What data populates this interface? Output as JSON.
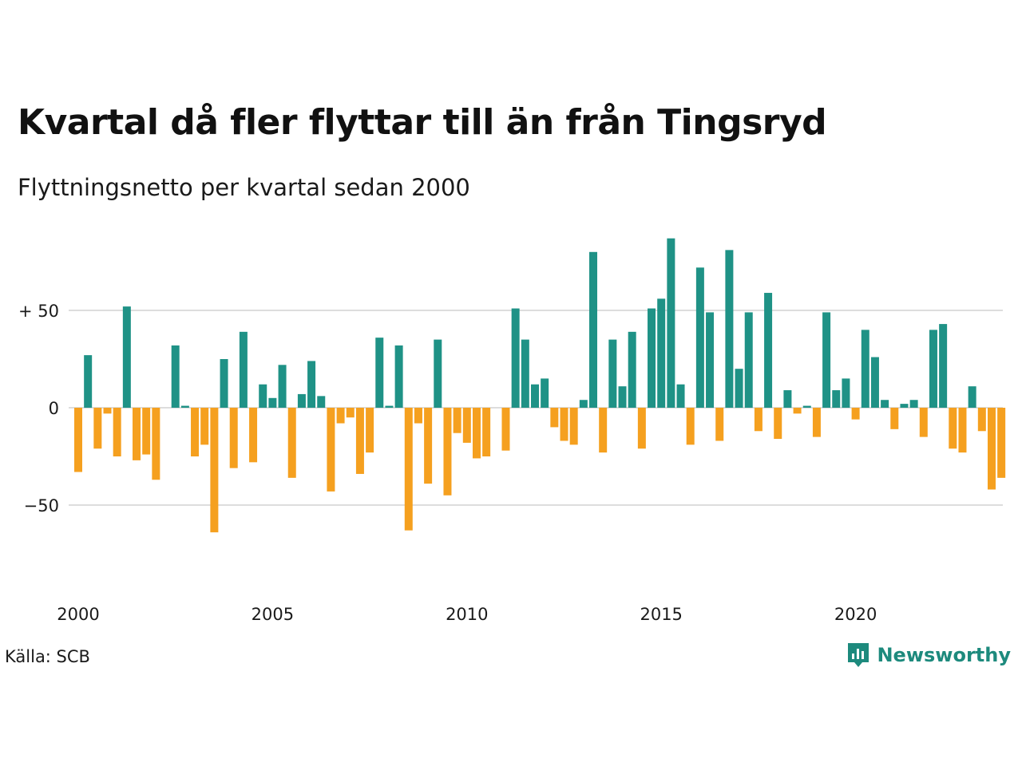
{
  "title": "Kvartal då fler flyttar till än från Tingsryd",
  "subtitle": "Flyttningsnetto per kvartal sedan 2000",
  "source": "Källa: SCB",
  "brand": "Newsworthy",
  "colors": {
    "positive": "#1f9286",
    "negative": "#f5a01f",
    "grid": "#dddddd",
    "brand": "#1d8a7d"
  },
  "chart_data": {
    "type": "bar",
    "title": "Kvartal då fler flyttar till än från Tingsryd",
    "subtitle": "Flyttningsnetto per kvartal sedan 2000",
    "xlabel": "",
    "ylabel": "",
    "ylim": [
      -85,
      88
    ],
    "grid": true,
    "yticks": [
      {
        "value": 50,
        "label": "+ 50"
      },
      {
        "value": 0,
        "label": "0"
      },
      {
        "value": -50,
        "label": "−50"
      }
    ],
    "xticks": [
      "2000",
      "2005",
      "2010",
      "2015",
      "2020"
    ],
    "start_year": 2000,
    "values": [
      -33,
      27,
      -21,
      -3,
      -25,
      52,
      -27,
      -24,
      -37,
      0,
      32,
      1,
      -25,
      -19,
      -64,
      25,
      -31,
      39,
      -28,
      12,
      5,
      22,
      -36,
      7,
      24,
      6,
      -43,
      -8,
      -5,
      -34,
      -23,
      36,
      1,
      32,
      -63,
      -8,
      -39,
      35,
      -45,
      -13,
      -18,
      -26,
      -25,
      0,
      -22,
      51,
      35,
      12,
      15,
      -10,
      -17,
      -19,
      4,
      80,
      -23,
      35,
      11,
      39,
      -21,
      51,
      56,
      87,
      12,
      -19,
      72,
      49,
      -17,
      81,
      20,
      49,
      -12,
      59,
      -16,
      9,
      -3,
      1,
      -15,
      49,
      9,
      15,
      -6,
      40,
      26,
      4,
      -11,
      2,
      4,
      -15,
      40,
      43,
      -21,
      -23,
      11,
      -12,
      -42,
      -36
    ]
  }
}
